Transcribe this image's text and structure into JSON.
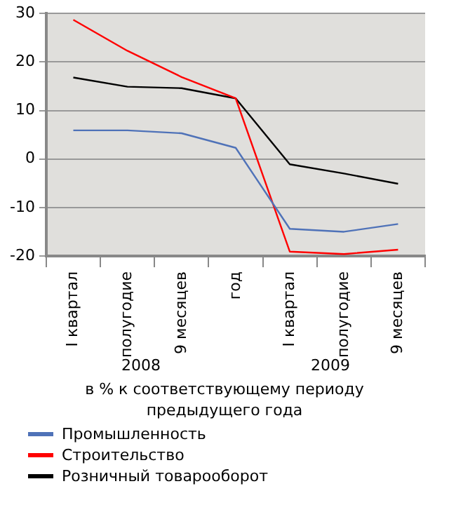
{
  "chart_data": {
    "type": "line",
    "categories": [
      "I квартал",
      "полугодие",
      "9 месяцев",
      "год",
      "I квартал",
      "полугодие",
      "9 месяцев"
    ],
    "series": [
      {
        "name": "Промышленность",
        "color": "#4f72b8",
        "values": [
          5.9,
          5.9,
          5.3,
          2.3,
          -14.4,
          -15.0,
          -13.4
        ]
      },
      {
        "name": "Строительство",
        "color": "#ff0000",
        "values": [
          28.7,
          22.3,
          16.9,
          12.5,
          -19.1,
          -19.6,
          -18.7
        ]
      },
      {
        "name": "Розничный товарооборот",
        "color": "#000000",
        "values": [
          16.8,
          14.9,
          14.6,
          12.5,
          -1.1,
          -3.0,
          -5.1
        ]
      }
    ],
    "xlabel": "в % к соответствующему периоду предыдущего года",
    "annotations": [
      "2008",
      "2009"
    ],
    "ylim": [
      -20,
      30
    ],
    "yticks": [
      -20,
      -10,
      0,
      10,
      20,
      30
    ],
    "grid": "y",
    "legend": "bottom",
    "marker": "none",
    "line_style": "solid"
  }
}
